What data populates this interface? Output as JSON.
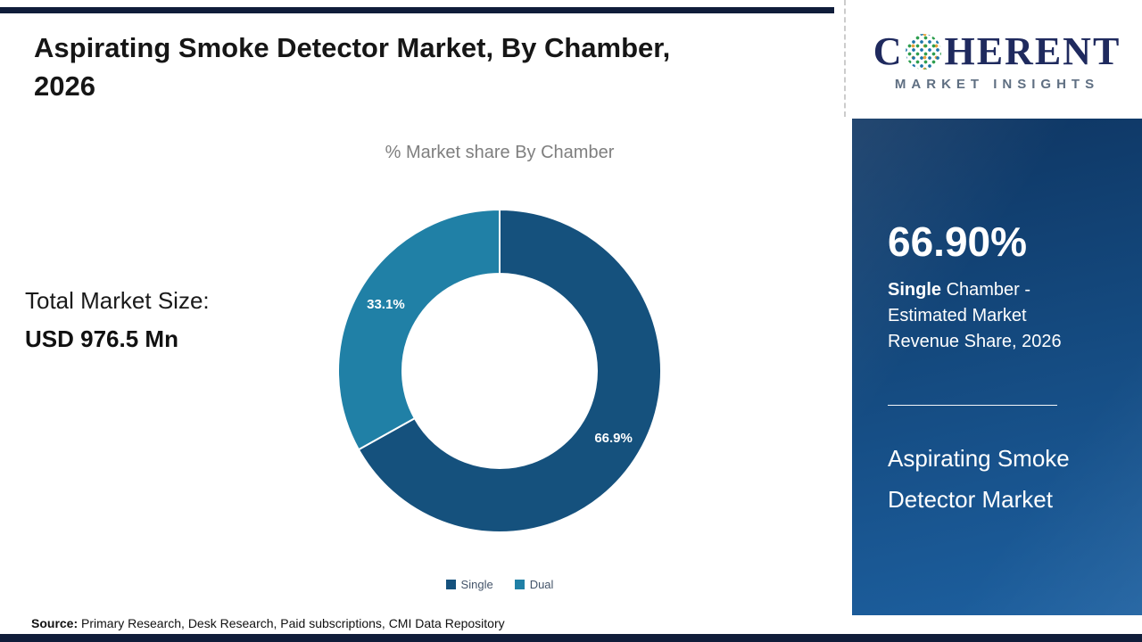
{
  "header": {
    "title": "Aspirating Smoke Detector Market, By Chamber,\n2026"
  },
  "chart_data": {
    "type": "pie",
    "subtype": "donut",
    "title": "% Market share By Chamber",
    "categories": [
      "Single",
      "Dual"
    ],
    "values": [
      66.9,
      33.1
    ],
    "labels": [
      "66.9%",
      "33.1%"
    ],
    "colors": [
      "#15517d",
      "#2080a6"
    ],
    "legend_position": "bottom",
    "start_angle_deg": 0,
    "direction": "clockwise"
  },
  "totals": {
    "label": "Total Market Size:",
    "value": "USD 976.5 Mn"
  },
  "source": {
    "label": "Source:",
    "text": " Primary Research, Desk Research, Paid subscriptions, CMI Data Repository"
  },
  "logo": {
    "part1": "C",
    "part2": "HERENT",
    "tagline": "MARKET INSIGHTS"
  },
  "panel": {
    "stat_value": "66.90%",
    "desc_bold": "Single",
    "desc_rest": " Chamber - Estimated Market Revenue Share, 2026",
    "title": "Aspirating Smoke\nDetector Market"
  },
  "colors": {
    "accent_navy": "#101d3a",
    "single_segment": "#15517d",
    "dual_segment": "#2080a6",
    "panel_gradient_start": "#0e3562",
    "panel_gradient_end": "#1d60a0"
  }
}
